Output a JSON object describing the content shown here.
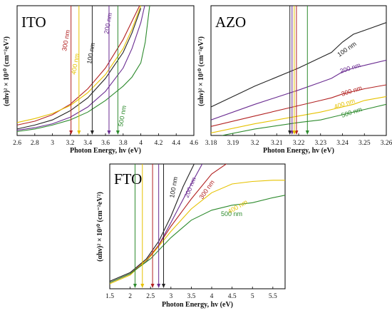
{
  "chart_data": [
    {
      "type": "line",
      "title": "ITO",
      "xlabel": "Photon Energy, hv (eV)",
      "ylabel": "(αhν)² × 10¹⁰ (cm⁻²eV²)",
      "xlim": [
        2.6,
        4.6
      ],
      "ylim": [
        0,
        1
      ],
      "xticks": [
        "2.6",
        "2.8",
        "3",
        "3.2",
        "3.4",
        "3.6",
        "3.8",
        "4",
        "4.2",
        "4.4",
        "4.6"
      ],
      "series": [
        {
          "name": "300 nm",
          "color": "#b22222",
          "x": [
            2.6,
            2.8,
            3.0,
            3.2,
            3.4,
            3.6,
            3.8,
            3.9,
            4.0
          ],
          "y": [
            0.08,
            0.11,
            0.16,
            0.24,
            0.36,
            0.52,
            0.74,
            0.88,
            1.02
          ],
          "bandgap": 3.21
        },
        {
          "name": "400 nm",
          "color": "#e6c200",
          "x": [
            2.6,
            2.8,
            3.0,
            3.2,
            3.4,
            3.6,
            3.8,
            3.9,
            4.0
          ],
          "y": [
            0.1,
            0.13,
            0.17,
            0.23,
            0.33,
            0.47,
            0.67,
            0.82,
            1.0
          ],
          "bandgap": 3.3
        },
        {
          "name": "100 nm",
          "color": "#222222",
          "x": [
            2.6,
            2.8,
            3.0,
            3.2,
            3.4,
            3.6,
            3.8,
            3.9,
            4.0
          ],
          "y": [
            0.05,
            0.08,
            0.12,
            0.19,
            0.29,
            0.44,
            0.64,
            0.79,
            0.98
          ],
          "bandgap": 3.45
        },
        {
          "name": "200 nm",
          "color": "#6a2c91",
          "x": [
            2.6,
            2.8,
            3.0,
            3.2,
            3.4,
            3.6,
            3.8,
            3.9,
            4.0,
            4.05
          ],
          "y": [
            0.04,
            0.06,
            0.09,
            0.14,
            0.22,
            0.34,
            0.52,
            0.67,
            0.87,
            1.02
          ],
          "bandgap": 3.64
        },
        {
          "name": "500 nm",
          "color": "#2e8b2e",
          "x": [
            2.6,
            2.8,
            3.0,
            3.2,
            3.4,
            3.6,
            3.8,
            3.9,
            4.0,
            4.05,
            4.1
          ],
          "y": [
            0.03,
            0.05,
            0.08,
            0.12,
            0.18,
            0.27,
            0.38,
            0.45,
            0.56,
            0.72,
            1.0
          ],
          "bandgap": 3.74
        }
      ]
    },
    {
      "type": "line",
      "title": "AZO",
      "xlabel": "Photon Energy, hv (eV)",
      "ylabel": "(αhν)² × 10¹⁰ (cm⁻²eV²)",
      "xlim": [
        3.18,
        3.26
      ],
      "ylim": [
        0,
        1
      ],
      "xticks": [
        "3.18",
        "3.19",
        "3.2",
        "3.21",
        "3.22",
        "3.23",
        "3.24",
        "3.25",
        "3.26"
      ],
      "series": [
        {
          "name": "100 nm",
          "color": "#222222",
          "x": [
            3.18,
            3.2,
            3.22,
            3.23,
            3.235,
            3.24,
            3.245,
            3.25,
            3.26
          ],
          "y": [
            0.22,
            0.38,
            0.52,
            0.6,
            0.64,
            0.72,
            0.78,
            0.81,
            0.87
          ],
          "bandgap": 3.216
        },
        {
          "name": "200 nm",
          "color": "#6a2c91",
          "x": [
            3.18,
            3.2,
            3.22,
            3.23,
            3.235,
            3.24,
            3.245,
            3.25,
            3.26
          ],
          "y": [
            0.12,
            0.24,
            0.35,
            0.41,
            0.44,
            0.49,
            0.52,
            0.54,
            0.58
          ],
          "bandgap": 3.217
        },
        {
          "name": "300 nm",
          "color": "#b22222",
          "x": [
            3.18,
            3.2,
            3.22,
            3.23,
            3.235,
            3.24,
            3.245,
            3.25,
            3.26
          ],
          "y": [
            0.07,
            0.15,
            0.23,
            0.27,
            0.29,
            0.32,
            0.34,
            0.36,
            0.39
          ],
          "bandgap": 3.219
        },
        {
          "name": "400 nm",
          "color": "#e6c200",
          "x": [
            3.18,
            3.2,
            3.22,
            3.23,
            3.235,
            3.24,
            3.245,
            3.25,
            3.26
          ],
          "y": [
            0.02,
            0.09,
            0.15,
            0.18,
            0.2,
            0.22,
            0.24,
            0.27,
            0.3
          ],
          "bandgap": 3.218
        },
        {
          "name": "500 nm",
          "color": "#2e8b2e",
          "x": [
            3.185,
            3.2,
            3.22,
            3.23,
            3.235,
            3.24,
            3.245,
            3.25,
            3.26
          ],
          "y": [
            0.0,
            0.05,
            0.1,
            0.12,
            0.14,
            0.16,
            0.18,
            0.2,
            0.24
          ],
          "bandgap": 3.224
        }
      ]
    },
    {
      "type": "line",
      "title": "FTO",
      "xlabel": "Photon Energy, hv (eV)",
      "ylabel": "(αhν)² × 10¹⁰ (cm⁻²eV²)",
      "xlim": [
        1.5,
        5.8
      ],
      "ylim": [
        0,
        1
      ],
      "xticks": [
        "1.5",
        "2",
        "2.5",
        "3",
        "3.5",
        "4",
        "4.5",
        "5",
        "5.5"
      ],
      "series": [
        {
          "name": "100 nm",
          "color": "#222222",
          "x": [
            1.5,
            2.0,
            2.4,
            2.7,
            3.0,
            3.3,
            3.6
          ],
          "y": [
            0.06,
            0.13,
            0.24,
            0.38,
            0.58,
            0.82,
            1.02
          ],
          "bandgap": 2.82
        },
        {
          "name": "200 nm",
          "color": "#6a2c91",
          "x": [
            1.5,
            2.0,
            2.4,
            2.7,
            3.0,
            3.4,
            3.8
          ],
          "y": [
            0.05,
            0.12,
            0.22,
            0.35,
            0.53,
            0.78,
            1.02
          ],
          "bandgap": 2.7
        },
        {
          "name": "300 nm",
          "color": "#b22222",
          "x": [
            1.5,
            2.0,
            2.4,
            2.7,
            3.0,
            3.5,
            4.0,
            4.4
          ],
          "y": [
            0.05,
            0.12,
            0.23,
            0.35,
            0.5,
            0.72,
            0.92,
            1.01
          ],
          "bandgap": 2.55
        },
        {
          "name": "400 nm",
          "color": "#e6c200",
          "x": [
            1.5,
            2.0,
            2.5,
            3.0,
            3.5,
            4.0,
            4.5,
            5.0,
            5.5,
            5.8
          ],
          "y": [
            0.04,
            0.11,
            0.26,
            0.46,
            0.64,
            0.77,
            0.84,
            0.86,
            0.87,
            0.87
          ],
          "bandgap": 2.3
        },
        {
          "name": "500 nm",
          "color": "#2e8b2e",
          "x": [
            1.5,
            2.0,
            2.5,
            3.0,
            3.5,
            4.0,
            4.5,
            5.0,
            5.5,
            5.8
          ],
          "y": [
            0.05,
            0.12,
            0.24,
            0.41,
            0.55,
            0.63,
            0.67,
            0.69,
            0.73,
            0.75
          ],
          "bandgap": 2.12
        }
      ]
    }
  ]
}
